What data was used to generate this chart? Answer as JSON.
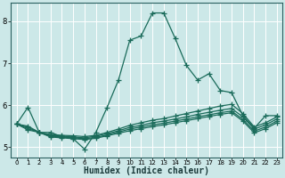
{
  "xlabel": "Humidex (Indice chaleur)",
  "background_color": "#cce8e8",
  "grid_color": "#e8f8f8",
  "line_color": "#1a6b5a",
  "xlim": [
    -0.5,
    23.5
  ],
  "ylim": [
    4.75,
    8.45
  ],
  "yticks": [
    5,
    6,
    7,
    8
  ],
  "xticks": [
    0,
    1,
    2,
    3,
    4,
    5,
    6,
    7,
    8,
    9,
    10,
    11,
    12,
    13,
    14,
    15,
    16,
    17,
    18,
    19,
    20,
    21,
    22,
    23
  ],
  "lines": [
    {
      "x": [
        0,
        1,
        2,
        3,
        4,
        5,
        6,
        7,
        8,
        9,
        10,
        11,
        12,
        13,
        14,
        15,
        16,
        17,
        18,
        19,
        20,
        21,
        22,
        23
      ],
      "y": [
        5.55,
        5.95,
        5.35,
        5.35,
        5.25,
        5.2,
        4.95,
        5.35,
        5.95,
        6.6,
        7.55,
        7.65,
        8.2,
        8.2,
        7.6,
        6.95,
        6.6,
        6.75,
        6.35,
        6.3,
        5.75,
        5.45,
        5.75,
        5.75
      ]
    },
    {
      "x": [
        0,
        1,
        2,
        3,
        4,
        5,
        6,
        7,
        8,
        9,
        10,
        11,
        12,
        13,
        14,
        15,
        16,
        17,
        18,
        19,
        20,
        21,
        22,
        23
      ],
      "y": [
        5.55,
        5.5,
        5.35,
        5.3,
        5.28,
        5.27,
        5.25,
        5.28,
        5.35,
        5.43,
        5.52,
        5.58,
        5.64,
        5.68,
        5.74,
        5.8,
        5.86,
        5.92,
        5.98,
        6.02,
        5.8,
        5.48,
        5.58,
        5.72
      ]
    },
    {
      "x": [
        0,
        1,
        2,
        3,
        4,
        5,
        6,
        7,
        8,
        9,
        10,
        11,
        12,
        13,
        14,
        15,
        16,
        17,
        18,
        19,
        20,
        21,
        22,
        23
      ],
      "y": [
        5.55,
        5.47,
        5.35,
        5.28,
        5.26,
        5.24,
        5.22,
        5.26,
        5.32,
        5.39,
        5.47,
        5.52,
        5.58,
        5.62,
        5.67,
        5.72,
        5.78,
        5.83,
        5.88,
        5.92,
        5.72,
        5.43,
        5.53,
        5.67
      ]
    },
    {
      "x": [
        0,
        1,
        2,
        3,
        4,
        5,
        6,
        7,
        8,
        9,
        10,
        11,
        12,
        13,
        14,
        15,
        16,
        17,
        18,
        19,
        20,
        21,
        22,
        23
      ],
      "y": [
        5.55,
        5.44,
        5.35,
        5.26,
        5.24,
        5.22,
        5.2,
        5.23,
        5.29,
        5.36,
        5.43,
        5.48,
        5.53,
        5.57,
        5.62,
        5.67,
        5.72,
        5.77,
        5.82,
        5.86,
        5.66,
        5.38,
        5.48,
        5.62
      ]
    },
    {
      "x": [
        0,
        1,
        2,
        3,
        4,
        5,
        6,
        7,
        8,
        9,
        10,
        11,
        12,
        13,
        14,
        15,
        16,
        17,
        18,
        19,
        20,
        21,
        22,
        23
      ],
      "y": [
        5.55,
        5.41,
        5.35,
        5.24,
        5.22,
        5.2,
        5.18,
        5.21,
        5.27,
        5.33,
        5.39,
        5.44,
        5.49,
        5.53,
        5.58,
        5.63,
        5.68,
        5.73,
        5.78,
        5.82,
        5.62,
        5.34,
        5.44,
        5.58
      ]
    }
  ]
}
